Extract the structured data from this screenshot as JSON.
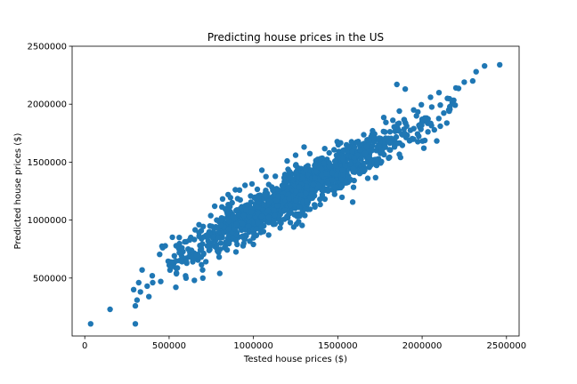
{
  "chart_data": {
    "type": "scatter",
    "title": "Predicting house prices in the US",
    "xlabel": "Tested house prices ($)",
    "ylabel": "Predicted house prices ($)",
    "xlim": [
      -75000,
      2575000
    ],
    "ylim": [
      0,
      2500000
    ],
    "xticks": [
      0,
      500000,
      1000000,
      1500000,
      2000000,
      2500000
    ],
    "yticks": [
      500000,
      1000000,
      1500000,
      2000000,
      2500000
    ],
    "xtick_labels": [
      "0",
      "500000",
      "1000000",
      "1500000",
      "2000000",
      "2500000"
    ],
    "ytick_labels": [
      "500000",
      "1000000",
      "1500000",
      "2000000",
      "2500000"
    ],
    "marker_color": "#1f77b4",
    "grid": false,
    "n_generated_points": 1400,
    "band": {
      "slope": 0.77,
      "intercept": 270000,
      "noise_sd": 95000,
      "x_mean": 1250000,
      "x_sd": 360000
    },
    "points": [
      [
        35000,
        105000
      ],
      [
        150000,
        230000
      ],
      [
        300000,
        105000
      ],
      [
        300000,
        260000
      ],
      [
        310000,
        310000
      ],
      [
        290000,
        400000
      ],
      [
        320000,
        460000
      ],
      [
        330000,
        380000
      ],
      [
        340000,
        570000
      ],
      [
        370000,
        430000
      ],
      [
        380000,
        340000
      ],
      [
        400000,
        520000
      ],
      [
        450000,
        470000
      ],
      [
        500000,
        640000
      ],
      [
        520000,
        620000
      ],
      [
        540000,
        420000
      ],
      [
        560000,
        850000
      ],
      [
        600000,
        500000
      ],
      [
        650000,
        480000
      ],
      [
        700000,
        500000
      ],
      [
        800000,
        540000
      ],
      [
        2000000,
        1870000
      ],
      [
        2050000,
        2060000
      ],
      [
        2100000,
        2100000
      ],
      [
        2150000,
        2050000
      ],
      [
        2200000,
        2140000
      ],
      [
        2250000,
        2190000
      ],
      [
        2300000,
        2200000
      ],
      [
        2320000,
        2280000
      ],
      [
        2370000,
        2330000
      ],
      [
        2460000,
        2340000
      ],
      [
        1850000,
        2170000
      ],
      [
        1900000,
        2130000
      ],
      [
        1950000,
        1950000
      ],
      [
        1880000,
        1740000
      ],
      [
        1700000,
        1600000
      ],
      [
        1600000,
        1440000
      ],
      [
        1500000,
        1280000
      ],
      [
        1350000,
        1190000
      ],
      [
        1300000,
        1630000
      ],
      [
        1250000,
        1560000
      ],
      [
        1200000,
        1510000
      ],
      [
        1000000,
        790000
      ],
      [
        1050000,
        1430000
      ],
      [
        950000,
        1300000
      ],
      [
        850000,
        1220000
      ],
      [
        770000,
        1120000
      ]
    ]
  }
}
